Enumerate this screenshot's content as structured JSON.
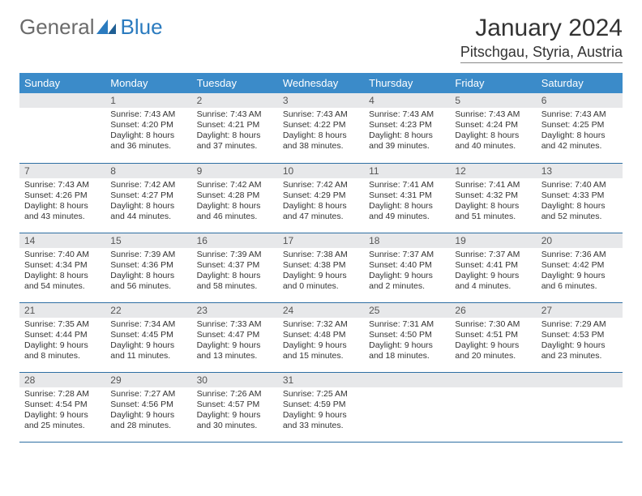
{
  "logo": {
    "text1": "General",
    "text2": "Blue"
  },
  "title": "January 2024",
  "location": "Pitschgau, Styria, Austria",
  "colors": {
    "header_bg": "#3b8bc9",
    "header_text": "#ffffff",
    "daynum_bg": "#e7e8ea",
    "divider": "#2e6fa3",
    "logo_gray": "#6b6b6b",
    "logo_blue": "#2b7bbf"
  },
  "dow": [
    "Sunday",
    "Monday",
    "Tuesday",
    "Wednesday",
    "Thursday",
    "Friday",
    "Saturday"
  ],
  "weeks": [
    [
      null,
      {
        "n": "1",
        "sr": "Sunrise: 7:43 AM",
        "ss": "Sunset: 4:20 PM",
        "dl1": "Daylight: 8 hours",
        "dl2": "and 36 minutes."
      },
      {
        "n": "2",
        "sr": "Sunrise: 7:43 AM",
        "ss": "Sunset: 4:21 PM",
        "dl1": "Daylight: 8 hours",
        "dl2": "and 37 minutes."
      },
      {
        "n": "3",
        "sr": "Sunrise: 7:43 AM",
        "ss": "Sunset: 4:22 PM",
        "dl1": "Daylight: 8 hours",
        "dl2": "and 38 minutes."
      },
      {
        "n": "4",
        "sr": "Sunrise: 7:43 AM",
        "ss": "Sunset: 4:23 PM",
        "dl1": "Daylight: 8 hours",
        "dl2": "and 39 minutes."
      },
      {
        "n": "5",
        "sr": "Sunrise: 7:43 AM",
        "ss": "Sunset: 4:24 PM",
        "dl1": "Daylight: 8 hours",
        "dl2": "and 40 minutes."
      },
      {
        "n": "6",
        "sr": "Sunrise: 7:43 AM",
        "ss": "Sunset: 4:25 PM",
        "dl1": "Daylight: 8 hours",
        "dl2": "and 42 minutes."
      }
    ],
    [
      {
        "n": "7",
        "sr": "Sunrise: 7:43 AM",
        "ss": "Sunset: 4:26 PM",
        "dl1": "Daylight: 8 hours",
        "dl2": "and 43 minutes."
      },
      {
        "n": "8",
        "sr": "Sunrise: 7:42 AM",
        "ss": "Sunset: 4:27 PM",
        "dl1": "Daylight: 8 hours",
        "dl2": "and 44 minutes."
      },
      {
        "n": "9",
        "sr": "Sunrise: 7:42 AM",
        "ss": "Sunset: 4:28 PM",
        "dl1": "Daylight: 8 hours",
        "dl2": "and 46 minutes."
      },
      {
        "n": "10",
        "sr": "Sunrise: 7:42 AM",
        "ss": "Sunset: 4:29 PM",
        "dl1": "Daylight: 8 hours",
        "dl2": "and 47 minutes."
      },
      {
        "n": "11",
        "sr": "Sunrise: 7:41 AM",
        "ss": "Sunset: 4:31 PM",
        "dl1": "Daylight: 8 hours",
        "dl2": "and 49 minutes."
      },
      {
        "n": "12",
        "sr": "Sunrise: 7:41 AM",
        "ss": "Sunset: 4:32 PM",
        "dl1": "Daylight: 8 hours",
        "dl2": "and 51 minutes."
      },
      {
        "n": "13",
        "sr": "Sunrise: 7:40 AM",
        "ss": "Sunset: 4:33 PM",
        "dl1": "Daylight: 8 hours",
        "dl2": "and 52 minutes."
      }
    ],
    [
      {
        "n": "14",
        "sr": "Sunrise: 7:40 AM",
        "ss": "Sunset: 4:34 PM",
        "dl1": "Daylight: 8 hours",
        "dl2": "and 54 minutes."
      },
      {
        "n": "15",
        "sr": "Sunrise: 7:39 AM",
        "ss": "Sunset: 4:36 PM",
        "dl1": "Daylight: 8 hours",
        "dl2": "and 56 minutes."
      },
      {
        "n": "16",
        "sr": "Sunrise: 7:39 AM",
        "ss": "Sunset: 4:37 PM",
        "dl1": "Daylight: 8 hours",
        "dl2": "and 58 minutes."
      },
      {
        "n": "17",
        "sr": "Sunrise: 7:38 AM",
        "ss": "Sunset: 4:38 PM",
        "dl1": "Daylight: 9 hours",
        "dl2": "and 0 minutes."
      },
      {
        "n": "18",
        "sr": "Sunrise: 7:37 AM",
        "ss": "Sunset: 4:40 PM",
        "dl1": "Daylight: 9 hours",
        "dl2": "and 2 minutes."
      },
      {
        "n": "19",
        "sr": "Sunrise: 7:37 AM",
        "ss": "Sunset: 4:41 PM",
        "dl1": "Daylight: 9 hours",
        "dl2": "and 4 minutes."
      },
      {
        "n": "20",
        "sr": "Sunrise: 7:36 AM",
        "ss": "Sunset: 4:42 PM",
        "dl1": "Daylight: 9 hours",
        "dl2": "and 6 minutes."
      }
    ],
    [
      {
        "n": "21",
        "sr": "Sunrise: 7:35 AM",
        "ss": "Sunset: 4:44 PM",
        "dl1": "Daylight: 9 hours",
        "dl2": "and 8 minutes."
      },
      {
        "n": "22",
        "sr": "Sunrise: 7:34 AM",
        "ss": "Sunset: 4:45 PM",
        "dl1": "Daylight: 9 hours",
        "dl2": "and 11 minutes."
      },
      {
        "n": "23",
        "sr": "Sunrise: 7:33 AM",
        "ss": "Sunset: 4:47 PM",
        "dl1": "Daylight: 9 hours",
        "dl2": "and 13 minutes."
      },
      {
        "n": "24",
        "sr": "Sunrise: 7:32 AM",
        "ss": "Sunset: 4:48 PM",
        "dl1": "Daylight: 9 hours",
        "dl2": "and 15 minutes."
      },
      {
        "n": "25",
        "sr": "Sunrise: 7:31 AM",
        "ss": "Sunset: 4:50 PM",
        "dl1": "Daylight: 9 hours",
        "dl2": "and 18 minutes."
      },
      {
        "n": "26",
        "sr": "Sunrise: 7:30 AM",
        "ss": "Sunset: 4:51 PM",
        "dl1": "Daylight: 9 hours",
        "dl2": "and 20 minutes."
      },
      {
        "n": "27",
        "sr": "Sunrise: 7:29 AM",
        "ss": "Sunset: 4:53 PM",
        "dl1": "Daylight: 9 hours",
        "dl2": "and 23 minutes."
      }
    ],
    [
      {
        "n": "28",
        "sr": "Sunrise: 7:28 AM",
        "ss": "Sunset: 4:54 PM",
        "dl1": "Daylight: 9 hours",
        "dl2": "and 25 minutes."
      },
      {
        "n": "29",
        "sr": "Sunrise: 7:27 AM",
        "ss": "Sunset: 4:56 PM",
        "dl1": "Daylight: 9 hours",
        "dl2": "and 28 minutes."
      },
      {
        "n": "30",
        "sr": "Sunrise: 7:26 AM",
        "ss": "Sunset: 4:57 PM",
        "dl1": "Daylight: 9 hours",
        "dl2": "and 30 minutes."
      },
      {
        "n": "31",
        "sr": "Sunrise: 7:25 AM",
        "ss": "Sunset: 4:59 PM",
        "dl1": "Daylight: 9 hours",
        "dl2": "and 33 minutes."
      },
      null,
      null,
      null
    ]
  ]
}
